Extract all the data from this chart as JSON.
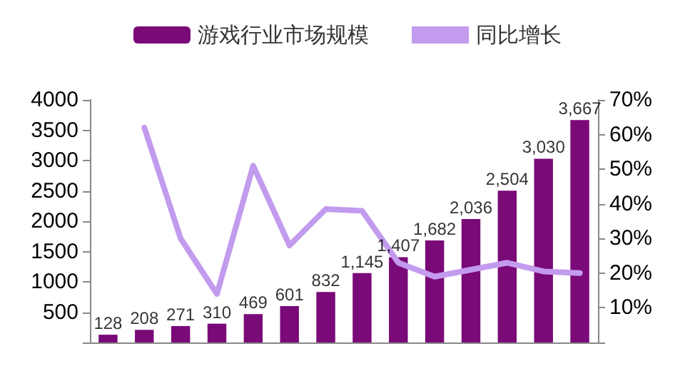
{
  "chart_data": {
    "type": "bar",
    "categories": [
      null,
      null,
      null,
      null,
      null,
      null,
      null,
      null,
      null,
      null,
      null,
      null,
      null,
      null
    ],
    "series": [
      {
        "name": "游戏行业市场规模",
        "color": "#7a0a78",
        "values": [
          128,
          208,
          271,
          310,
          469,
          601,
          832,
          1145,
          1407,
          1682,
          2036,
          2504,
          3030,
          3667
        ],
        "value_labels": [
          "128",
          "208",
          "271",
          "310",
          "469",
          "601",
          "832",
          "1,145",
          "1,407",
          "1,682",
          "2,036",
          "2,504",
          "3,030",
          "3,667"
        ]
      },
      {
        "name": "同比增长",
        "type": "line",
        "axis": "y2",
        "color": "#c39bee",
        "values": [
          null,
          62,
          30,
          14,
          51,
          28,
          38.5,
          38,
          23,
          19,
          21,
          23,
          20.5,
          20
        ]
      }
    ],
    "ylim": [
      0,
      4000
    ],
    "yticks": [
      {
        "value": 0,
        "label": null
      },
      500,
      1000,
      1500,
      2000,
      2500,
      3000,
      3500,
      4000
    ],
    "y2lim": [
      0,
      70
    ],
    "y2ticks": [
      {
        "value": 0,
        "label": null
      },
      {
        "value": 10,
        "label": "10%"
      },
      {
        "value": 20,
        "label": "20%"
      },
      {
        "value": 30,
        "label": "30%"
      },
      {
        "value": 40,
        "label": "40%"
      },
      {
        "value": 50,
        "label": "50%"
      },
      {
        "value": 60,
        "label": "60%"
      },
      {
        "value": 70,
        "label": "70%"
      }
    ],
    "legend": "top",
    "grid": false,
    "marker": "none",
    "line_style": "solid"
  }
}
